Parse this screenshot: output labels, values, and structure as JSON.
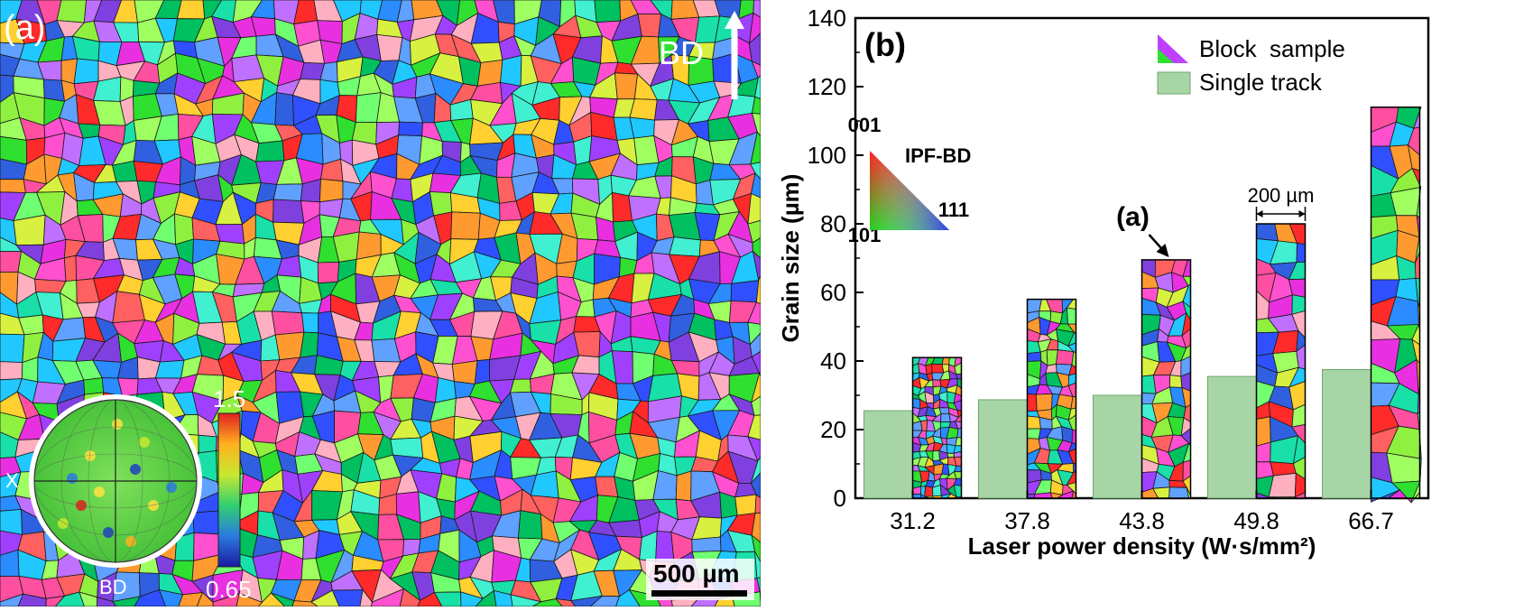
{
  "panel_a": {
    "label": "(a)",
    "direction_label": "BD",
    "scale_bar": "500 µm",
    "pole_figure": {
      "x_label": "X",
      "bottom_label": "BD"
    },
    "colorbar": {
      "max": "1.5",
      "min": "0.65"
    }
  },
  "chart_data": {
    "type": "bar",
    "panel_label": "(b)",
    "categories": [
      "31.2",
      "37.8",
      "43.8",
      "49.8",
      "66.7"
    ],
    "series": [
      {
        "name": "Single track",
        "values": [
          25.5,
          28.7,
          30.0,
          35.5,
          37.5
        ],
        "color": "#a8d5a5"
      },
      {
        "name": "Block  sample",
        "values": [
          41,
          58,
          69.5,
          80,
          114
        ],
        "color": "grain-map"
      }
    ],
    "xlabel": "Laser power density (W·s/mm²)",
    "ylabel": "Grain size (µm)",
    "ylim": [
      0,
      140
    ],
    "yticks": [
      "0",
      "20",
      "40",
      "60",
      "80",
      "100",
      "120",
      "140"
    ],
    "legend_position": "top-right",
    "ipf_key": {
      "title": "IPF-BD",
      "top": "001",
      "left": "101",
      "right": "111"
    },
    "annotations": {
      "arrow_label": "(a)",
      "width_label": "200 µm"
    }
  }
}
